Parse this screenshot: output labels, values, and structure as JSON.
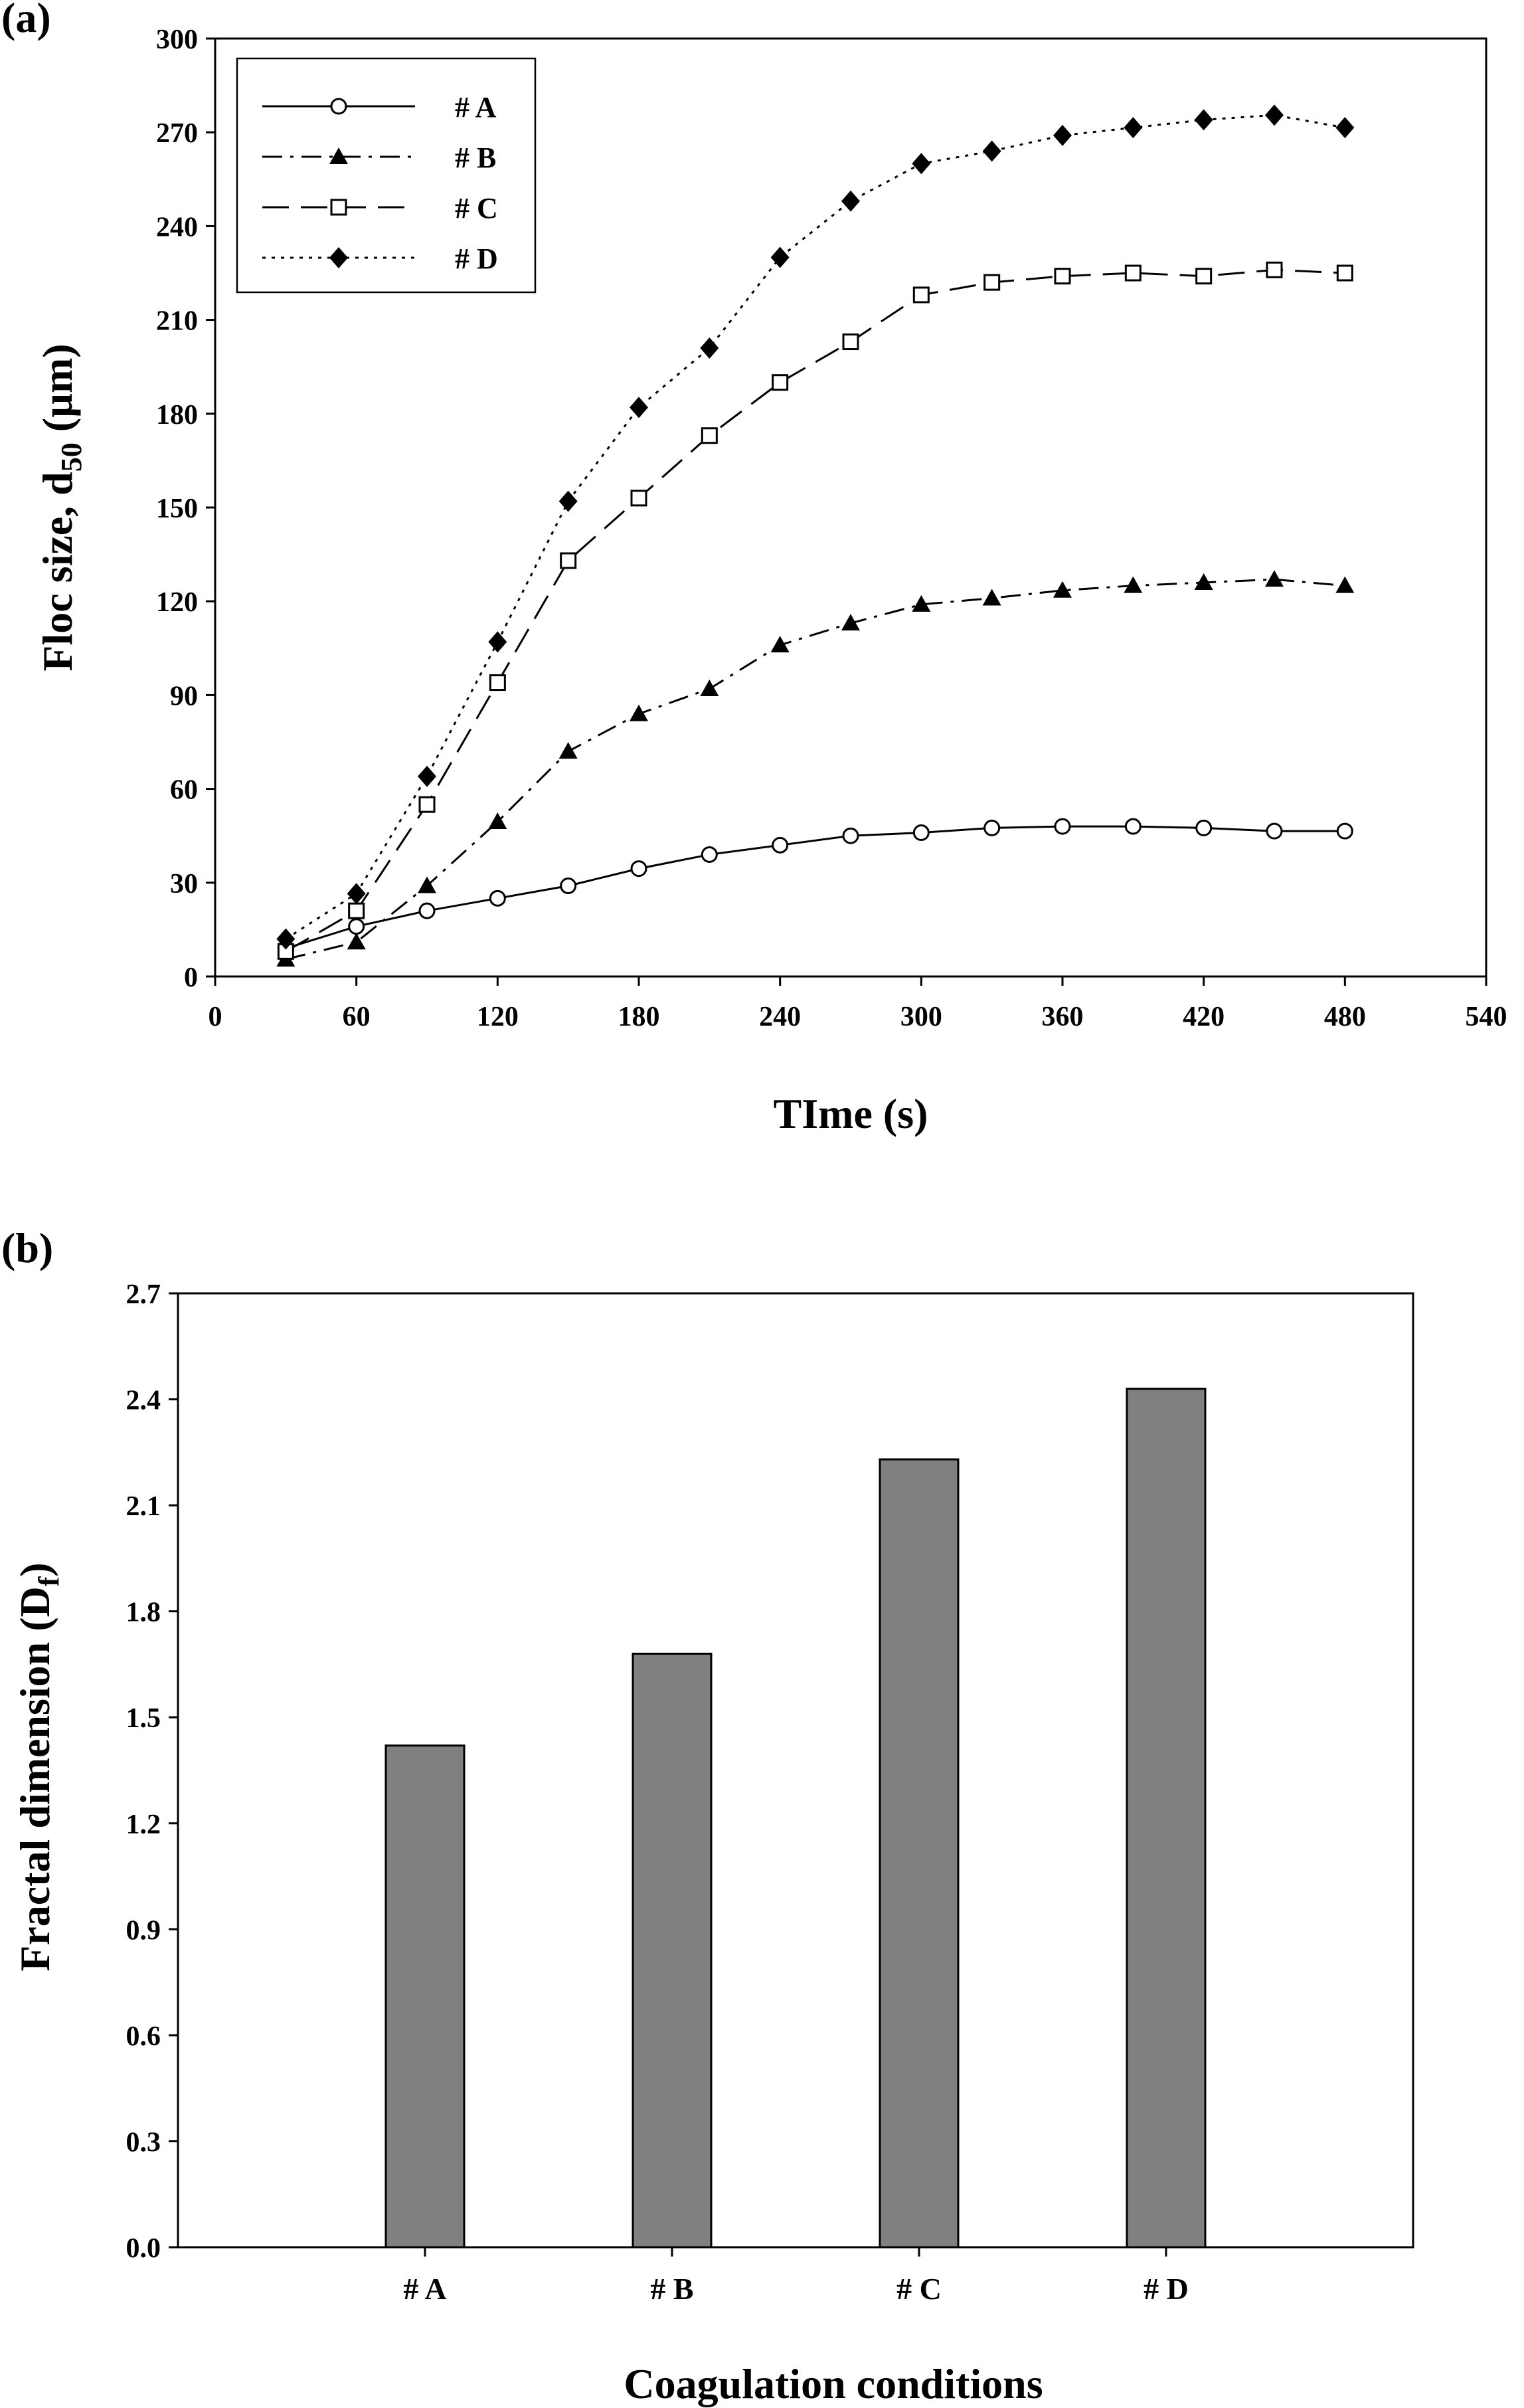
{
  "chart_data": [
    {
      "panel_label": "(a)",
      "type": "line",
      "xlabel": "TIme (s)",
      "ylabel": "Floc size, d",
      "ylabel_sub": "50",
      "ylabel_unit": " (µm)",
      "xlim": [
        0,
        540
      ],
      "ylim": [
        0,
        300
      ],
      "xticks": [
        0,
        60,
        120,
        180,
        240,
        300,
        360,
        420,
        480,
        540
      ],
      "yticks": [
        0,
        30,
        60,
        90,
        120,
        150,
        180,
        210,
        240,
        270,
        300
      ],
      "legend_position": "top-left",
      "x": [
        30,
        60,
        90,
        120,
        150,
        180,
        210,
        240,
        270,
        300,
        330,
        360,
        390,
        420,
        450,
        480
      ],
      "series": [
        {
          "name": "# A",
          "marker": "circle-open",
          "line": "solid",
          "values": [
            9,
            16,
            21,
            25,
            29,
            34.5,
            39,
            42,
            45,
            46,
            47.5,
            48,
            48,
            47.5,
            46.5,
            46.5
          ]
        },
        {
          "name": "# B",
          "marker": "triangle-filled",
          "line": "dash-dot",
          "values": [
            5.5,
            11,
            29,
            49.5,
            72,
            84,
            92,
            106,
            113,
            119,
            121,
            123.5,
            125,
            126,
            127,
            125
          ]
        },
        {
          "name": "# C",
          "marker": "square-open",
          "line": "long-dash",
          "values": [
            8,
            21,
            55,
            94,
            133,
            153,
            173,
            190,
            203,
            218,
            222,
            224,
            225,
            224,
            226,
            225
          ]
        },
        {
          "name": "# D",
          "marker": "diamond-filled",
          "line": "dotted",
          "values": [
            12,
            26.5,
            64,
            107,
            152,
            182,
            201,
            230,
            248,
            260,
            264,
            269,
            271.5,
            274,
            275.5,
            271.5
          ]
        }
      ]
    },
    {
      "panel_label": "(b)",
      "type": "bar",
      "xlabel": "Coagulation conditions",
      "ylabel": "Fractal dimension (D",
      "ylabel_sub": "f",
      "ylabel_unit": ")",
      "categories": [
        "# A",
        "# B",
        "# C",
        "# D"
      ],
      "values": [
        1.42,
        1.68,
        2.23,
        2.43
      ],
      "ylim": [
        0,
        2.7
      ],
      "yticks": [
        "0.0",
        "0.3",
        "0.6",
        "0.9",
        "1.2",
        "1.5",
        "1.8",
        "2.1",
        "2.4",
        "2.7"
      ],
      "bar_color": "#808080"
    }
  ]
}
